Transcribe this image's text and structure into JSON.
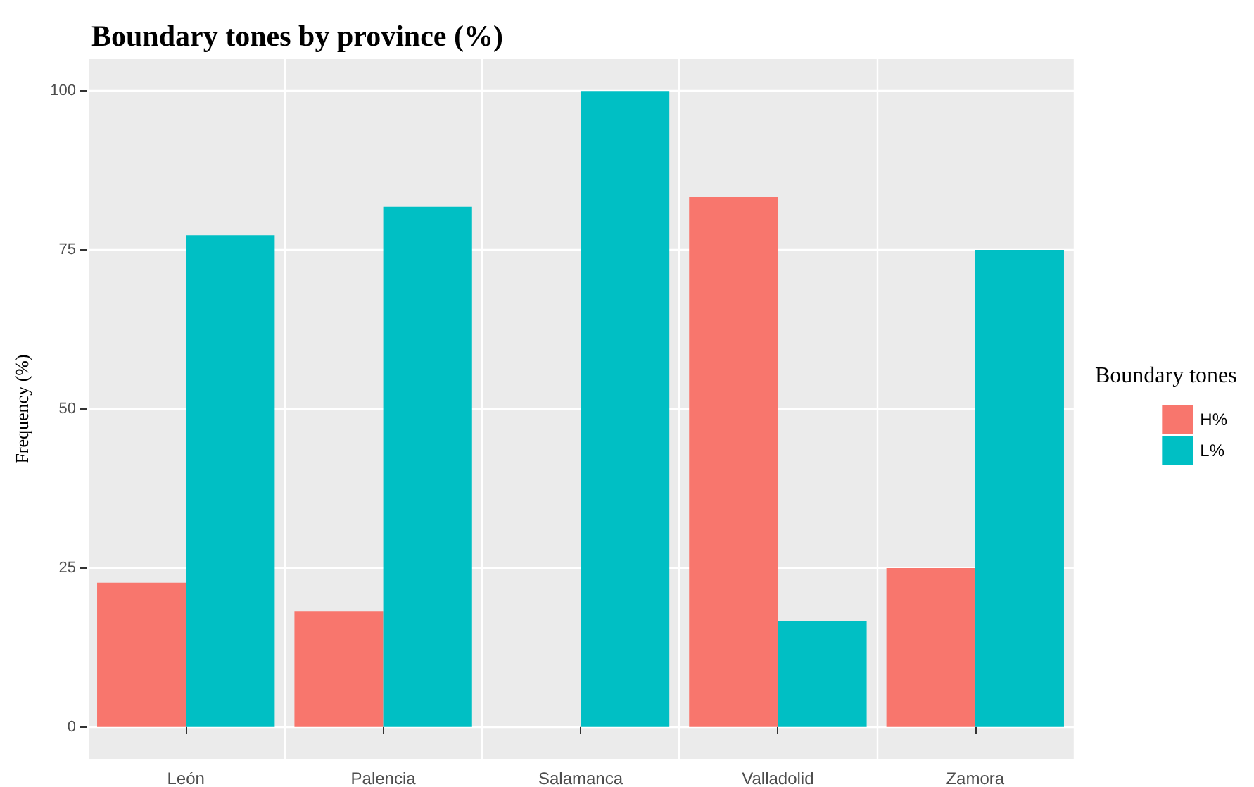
{
  "chart_data": {
    "type": "bar",
    "title": "Boundary tones by province (%)",
    "ylabel": "Frequency (%)",
    "legend_title": "Boundary tones",
    "categories": [
      "León",
      "Palencia",
      "Salamanca",
      "Valladolid",
      "Zamora"
    ],
    "series": [
      {
        "name": "H%",
        "color": "#f8766d",
        "values": [
          22.7,
          18.2,
          0,
          83.3,
          25
        ]
      },
      {
        "name": "L%",
        "color": "#00bfc4",
        "values": [
          77.3,
          81.8,
          100,
          16.7,
          75
        ]
      }
    ],
    "ylim": [
      -5,
      105
    ],
    "yticks": [
      0,
      25,
      50,
      75,
      100
    ],
    "grid": true,
    "legend": "right"
  }
}
